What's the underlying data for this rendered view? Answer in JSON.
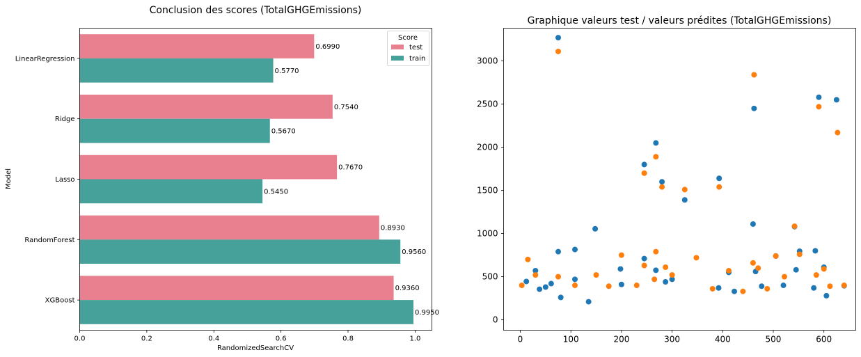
{
  "chart_data": [
    {
      "type": "bar",
      "orientation": "horizontal",
      "title": "Conclusion des scores (TotalGHGEmissions)",
      "xlabel": "RandomizedSearchCV",
      "ylabel": "Model",
      "xlim": [
        0,
        1.05
      ],
      "xticks": [
        "0.0",
        "0.2",
        "0.4",
        "0.6",
        "0.8",
        "1.0"
      ],
      "categories": [
        "LinearRegression",
        "Ridge",
        "Lasso",
        "RandomForest",
        "XGBoost"
      ],
      "legend": {
        "title": "Score",
        "placement": "top-right"
      },
      "series": [
        {
          "name": "test",
          "color": "#e8808f",
          "values": [
            0.699,
            0.754,
            0.767,
            0.893,
            0.936
          ],
          "labels": [
            "0.6990",
            "0.7540",
            "0.7670",
            "0.8930",
            "0.9360"
          ]
        },
        {
          "name": "train",
          "color": "#46a19b",
          "values": [
            0.577,
            0.567,
            0.545,
            0.956,
            0.995
          ],
          "labels": [
            "0.5770",
            "0.5670",
            "0.5450",
            "0.9560",
            "0.9950"
          ]
        }
      ]
    },
    {
      "type": "scatter",
      "title": "Graphique valeurs test / valeurs prédites (TotalGHGEmissions)",
      "xlabel": "",
      "ylabel": "",
      "xlim": [
        -33,
        663
      ],
      "ylim": [
        -120,
        3380
      ],
      "xticks": [
        "0",
        "100",
        "200",
        "300",
        "400",
        "500",
        "600"
      ],
      "yticks": [
        "0",
        "500",
        "1000",
        "1500",
        "2000",
        "2500",
        "3000"
      ],
      "series": [
        {
          "color": "#1f77b4",
          "points": [
            [
              75,
              3270
            ],
            [
              590,
              2580
            ],
            [
              625,
              2550
            ],
            [
              462,
              2450
            ],
            [
              268,
              2050
            ],
            [
              245,
              1800
            ],
            [
              280,
              1600
            ],
            [
              393,
              1640
            ],
            [
              325,
              1390
            ],
            [
              460,
              1110
            ],
            [
              148,
              1055
            ],
            [
              542,
              1080
            ],
            [
              108,
              815
            ],
            [
              75,
              790
            ],
            [
              552,
              795
            ],
            [
              583,
              800
            ],
            [
              268,
              575
            ],
            [
              545,
              580
            ],
            [
              198,
              590
            ],
            [
              245,
              710
            ],
            [
              30,
              570
            ],
            [
              12,
              445
            ],
            [
              465,
              560
            ],
            [
              50,
              380
            ],
            [
              61,
              420
            ],
            [
              38,
              355
            ],
            [
              108,
              470
            ],
            [
              412,
              550
            ],
            [
              600,
              610
            ],
            [
              505,
              740
            ],
            [
              135,
              210
            ],
            [
              80,
              260
            ],
            [
              200,
              410
            ],
            [
              287,
              440
            ],
            [
              300,
              470
            ],
            [
              392,
              370
            ],
            [
              423,
              330
            ],
            [
              477,
              390
            ],
            [
              520,
              400
            ],
            [
              580,
              370
            ],
            [
              605,
              280
            ],
            [
              640,
              395
            ]
          ]
        },
        {
          "color": "#ff7f0e",
          "points": [
            [
              75,
              3110
            ],
            [
              462,
              2840
            ],
            [
              590,
              2470
            ],
            [
              627,
              2170
            ],
            [
              268,
              1890
            ],
            [
              245,
              1700
            ],
            [
              280,
              1540
            ],
            [
              325,
              1510
            ],
            [
              393,
              1540
            ],
            [
              542,
              1085
            ],
            [
              268,
              790
            ],
            [
              200,
              750
            ],
            [
              15,
              700
            ],
            [
              245,
              630
            ],
            [
              75,
              500
            ],
            [
              150,
              520
            ],
            [
              30,
              520
            ],
            [
              460,
              660
            ],
            [
              348,
              720
            ],
            [
              505,
              740
            ],
            [
              552,
              760
            ],
            [
              585,
              520
            ],
            [
              600,
              590
            ],
            [
              3,
              400
            ],
            [
              412,
              570
            ],
            [
              300,
              520
            ],
            [
              470,
              600
            ],
            [
              108,
              400
            ],
            [
              175,
              390
            ],
            [
              230,
              400
            ],
            [
              265,
              470
            ],
            [
              287,
              610
            ],
            [
              380,
              360
            ],
            [
              440,
              330
            ],
            [
              488,
              360
            ],
            [
              522,
              500
            ],
            [
              640,
              400
            ],
            [
              612,
              390
            ]
          ]
        }
      ]
    }
  ]
}
